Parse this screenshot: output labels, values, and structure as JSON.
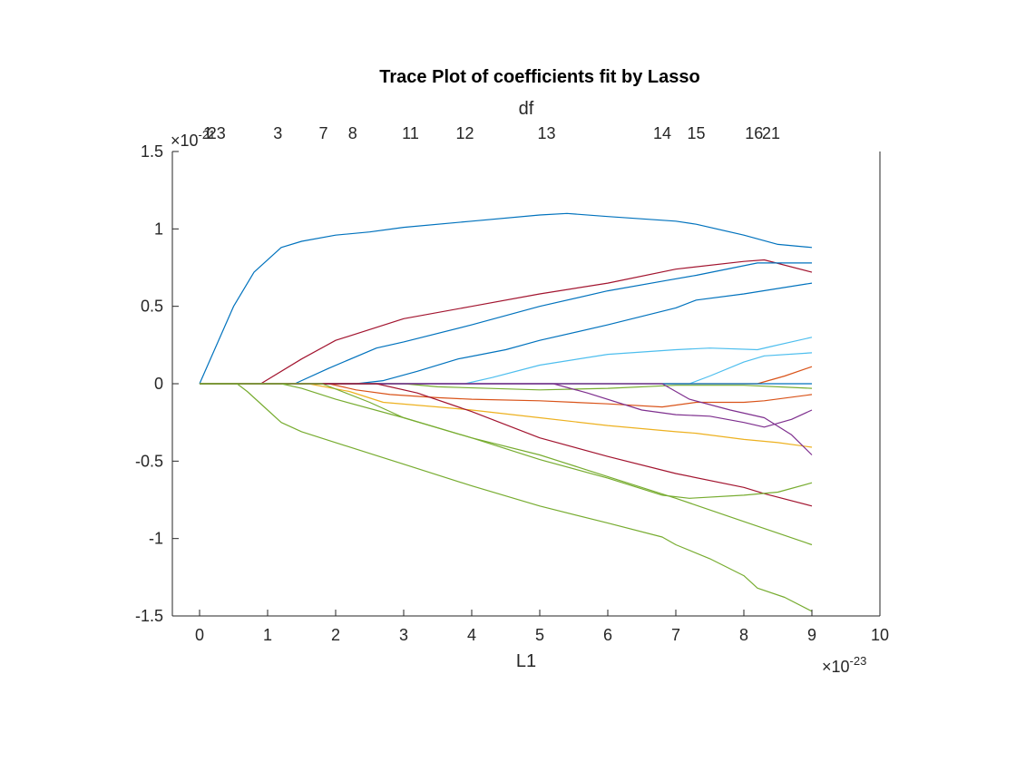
{
  "chart_data": {
    "type": "line",
    "title": "Trace Plot of coefficients fit by Lasso",
    "xlabel": "L1",
    "top_axis_label": "df",
    "x_exponent_label": {
      "base": "×10",
      "exp": "-23"
    },
    "y_exponent_label": {
      "base": "×10",
      "exp": "-21"
    },
    "xlim": [
      -0.4,
      10
    ],
    "ylim": [
      -1.5,
      1.5
    ],
    "x_ticks": [
      0,
      1,
      2,
      3,
      4,
      5,
      6,
      7,
      8,
      9,
      10
    ],
    "x_tick_labels": [
      "0",
      "1",
      "2",
      "3",
      "4",
      "5",
      "6",
      "7",
      "8",
      "9",
      "10"
    ],
    "y_ticks": [
      1.5,
      1,
      0.5,
      0,
      -0.5,
      -1,
      -1.5
    ],
    "y_tick_labels": [
      "1.5",
      "1",
      "0.5",
      "0",
      "-0.5",
      "-1",
      "-1.5"
    ],
    "df_ticks": [
      {
        "x": 0.12,
        "label": "1"
      },
      {
        "x": 0.25,
        "label": "23"
      },
      {
        "x": 1.15,
        "label": "3"
      },
      {
        "x": 1.82,
        "label": "7"
      },
      {
        "x": 2.25,
        "label": "8"
      },
      {
        "x": 3.1,
        "label": "11"
      },
      {
        "x": 3.9,
        "label": "12"
      },
      {
        "x": 5.1,
        "label": "13"
      },
      {
        "x": 6.8,
        "label": "14"
      },
      {
        "x": 7.3,
        "label": "15"
      },
      {
        "x": 8.15,
        "label": "16"
      },
      {
        "x": 8.4,
        "label": "21"
      }
    ],
    "grid": false,
    "series": [
      {
        "color": "#0072BD",
        "x": [
          0,
          0.5,
          0.8,
          1.2,
          1.5,
          2,
          2.5,
          3,
          4,
          5,
          5.4,
          6,
          7,
          7.3,
          8,
          8.5,
          9
        ],
        "y": [
          0,
          0.5,
          0.72,
          0.88,
          0.92,
          0.96,
          0.98,
          1.01,
          1.05,
          1.09,
          1.1,
          1.08,
          1.05,
          1.03,
          0.96,
          0.9,
          0.88
        ]
      },
      {
        "color": "#A2142F",
        "x": [
          0,
          0.9,
          1.5,
          2,
          3,
          4,
          5,
          6,
          7,
          8,
          8.3,
          9
        ],
        "y": [
          0,
          0,
          0.16,
          0.28,
          0.42,
          0.5,
          0.58,
          0.65,
          0.74,
          0.79,
          0.8,
          0.72
        ]
      },
      {
        "color": "#0072BD",
        "x": [
          0,
          1.4,
          1.9,
          2.6,
          3,
          4,
          5,
          6,
          6.9,
          7.3,
          8.2,
          9
        ],
        "y": [
          0,
          0,
          0.1,
          0.23,
          0.27,
          0.38,
          0.5,
          0.6,
          0.67,
          0.7,
          0.78,
          0.78
        ]
      },
      {
        "color": "#0072BD",
        "x": [
          0,
          2.3,
          2.7,
          3.2,
          3.8,
          4.5,
          5,
          6,
          7,
          7.3,
          8,
          9
        ],
        "y": [
          0,
          0,
          0.02,
          0.08,
          0.16,
          0.22,
          0.28,
          0.38,
          0.49,
          0.54,
          0.58,
          0.65
        ]
      },
      {
        "color": "#4DBEEE",
        "x": [
          0,
          3.9,
          4.3,
          5,
          6,
          7,
          7.5,
          8.2,
          8.4,
          9
        ],
        "y": [
          0,
          0,
          0.04,
          0.12,
          0.19,
          0.22,
          0.23,
          0.22,
          0.24,
          0.3
        ]
      },
      {
        "color": "#4DBEEE",
        "x": [
          0,
          7.2,
          7.5,
          8,
          8.3,
          9
        ],
        "y": [
          0,
          0,
          0.05,
          0.14,
          0.18,
          0.2
        ]
      },
      {
        "color": "#D95319",
        "x": [
          0,
          8.2,
          8.6,
          9
        ],
        "y": [
          0,
          0,
          0.05,
          0.11
        ]
      },
      {
        "color": "#0072BD",
        "x": [
          0,
          9
        ],
        "y": [
          0,
          0
        ]
      },
      {
        "color": "#77AC30",
        "x": [
          0,
          3,
          3.5,
          5,
          6,
          7,
          8,
          9
        ],
        "y": [
          0,
          0,
          -0.02,
          -0.04,
          -0.03,
          -0.01,
          -0.01,
          -0.03
        ]
      },
      {
        "color": "#D95319",
        "x": [
          0,
          1.9,
          2.3,
          2.8,
          3.5,
          4,
          5,
          6,
          6.8,
          7.3,
          8,
          8.3,
          9
        ],
        "y": [
          0,
          0,
          -0.04,
          -0.07,
          -0.09,
          -0.1,
          -0.11,
          -0.13,
          -0.15,
          -0.12,
          -0.12,
          -0.11,
          -0.07
        ]
      },
      {
        "color": "#EDB120",
        "x": [
          0,
          1.6,
          2.2,
          2.7,
          3.5,
          4,
          5,
          6,
          7,
          7.3,
          8,
          8.5,
          9
        ],
        "y": [
          0,
          0,
          -0.05,
          -0.12,
          -0.15,
          -0.17,
          -0.22,
          -0.27,
          -0.31,
          -0.32,
          -0.36,
          -0.38,
          -0.41
        ]
      },
      {
        "color": "#7E2F8E",
        "x": [
          0,
          5.2,
          5.7,
          6.5,
          7,
          7.5,
          8,
          8.3,
          8.7,
          9
        ],
        "y": [
          0,
          0,
          -0.06,
          -0.17,
          -0.2,
          -0.21,
          -0.25,
          -0.28,
          -0.23,
          -0.17
        ]
      },
      {
        "color": "#7E2F8E",
        "x": [
          0,
          6.8,
          7.2,
          7.8,
          8.3,
          8.7,
          9
        ],
        "y": [
          0,
          0,
          -0.1,
          -0.17,
          -0.22,
          -0.33,
          -0.46
        ]
      },
      {
        "color": "#A2142F",
        "x": [
          0,
          2.6,
          3.2,
          4,
          5,
          6,
          7,
          8,
          8.3,
          9
        ],
        "y": [
          0,
          0,
          -0.06,
          -0.18,
          -0.35,
          -0.47,
          -0.58,
          -0.67,
          -0.71,
          -0.79
        ]
      },
      {
        "color": "#77AC30",
        "x": [
          0,
          1.8,
          2.5,
          3,
          4,
          5,
          6,
          6.8,
          7.2,
          8,
          8.5,
          9
        ],
        "y": [
          0,
          0,
          -0.12,
          -0.22,
          -0.35,
          -0.49,
          -0.61,
          -0.72,
          -0.74,
          -0.72,
          -0.7,
          -0.64
        ]
      },
      {
        "color": "#77AC30",
        "x": [
          0,
          1.2,
          1.5,
          2,
          3,
          4,
          5,
          6,
          7,
          8,
          9
        ],
        "y": [
          0,
          0,
          -0.03,
          -0.1,
          -0.22,
          -0.35,
          -0.46,
          -0.6,
          -0.74,
          -0.89,
          -1.04
        ]
      },
      {
        "color": "#77AC30",
        "x": [
          0,
          0.55,
          0.7,
          1,
          1.2,
          1.5,
          2,
          2.5,
          3,
          4,
          5,
          6,
          6.8,
          7,
          7.5,
          8,
          8.2,
          8.6,
          9
        ],
        "y": [
          0,
          0,
          -0.05,
          -0.17,
          -0.25,
          -0.31,
          -0.38,
          -0.45,
          -0.52,
          -0.66,
          -0.79,
          -0.9,
          -0.99,
          -1.04,
          -1.13,
          -1.24,
          -1.32,
          -1.38,
          -1.47
        ]
      }
    ]
  }
}
